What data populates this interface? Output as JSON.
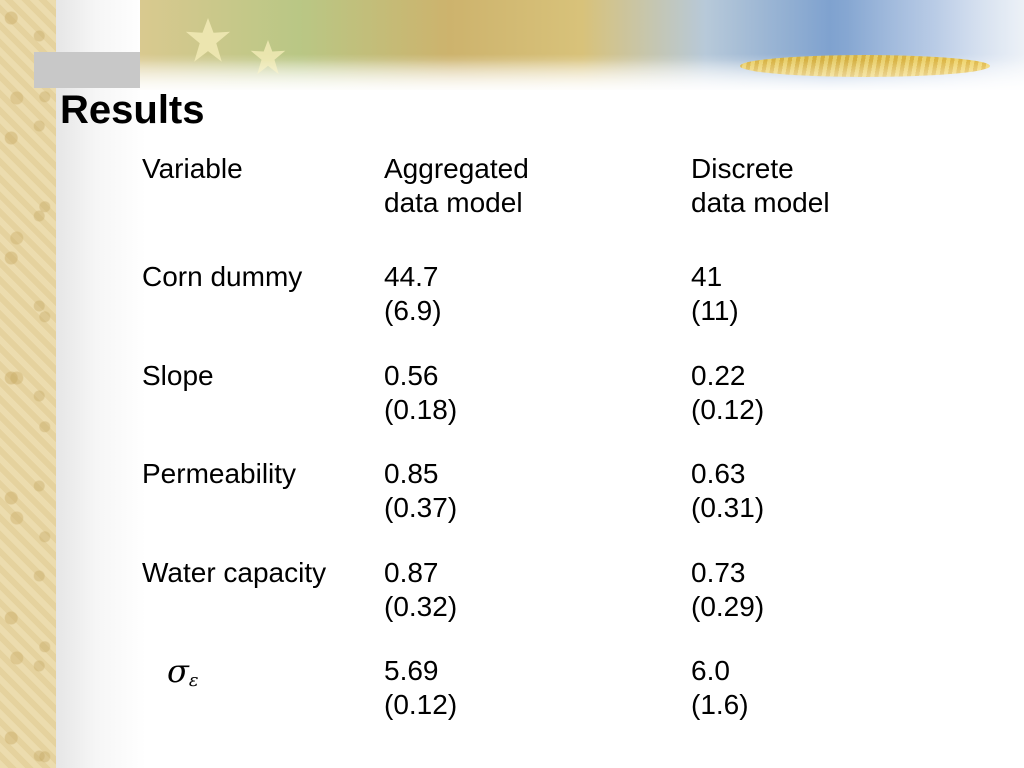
{
  "slide": {
    "title": "Results"
  },
  "table": {
    "headers": {
      "variable": "Variable",
      "aggregated": [
        "Aggregated",
        "data model"
      ],
      "discrete": [
        "Discrete",
        "data model"
      ]
    },
    "rows": [
      {
        "variable": "Corn dummy",
        "aggregated": "44.7",
        "aggregated_se": "(6.9)",
        "discrete": "41",
        "discrete_se": "(11)"
      },
      {
        "variable": "Slope",
        "aggregated": "0.56",
        "aggregated_se": "(0.18)",
        "discrete": "0.22",
        "discrete_se": "(0.12)"
      },
      {
        "variable": "Permeability",
        "aggregated": "0.85",
        "aggregated_se": "(0.37)",
        "discrete": "0.63",
        "discrete_se": "(0.31)"
      },
      {
        "variable": "Water capacity",
        "aggregated": "0.87",
        "aggregated_se": "(0.32)",
        "discrete": "0.73",
        "discrete_se": "(0.29)"
      },
      {
        "variable_symbol": "σ",
        "variable_subscript": "ε",
        "aggregated": "5.69",
        "aggregated_se": "(0.12)",
        "discrete": "6.0",
        "discrete_se": "(1.6)"
      }
    ]
  }
}
